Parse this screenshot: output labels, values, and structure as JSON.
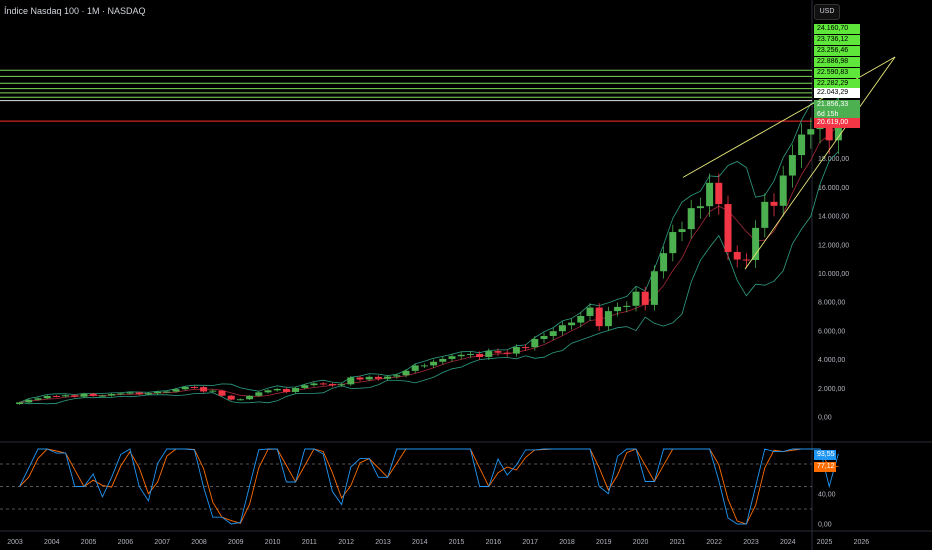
{
  "header": {
    "title": "Índice Nasdaq 100 · 1M · NASDAQ",
    "currency": "USD"
  },
  "colors": {
    "up": "#4caf50",
    "down": "#f23645",
    "band": "#2e9e85",
    "basis": "#a7283a",
    "trend": "#e8e87a",
    "level": "#7ed957",
    "red_level": "#ff2b2b",
    "k": "#2196f3",
    "d": "#ff6d00"
  },
  "price_tags": [
    {
      "label": "24.160,70",
      "value": 24160.7,
      "style": "green"
    },
    {
      "label": "23.736,12",
      "value": 23736.12,
      "style": "green"
    },
    {
      "label": "23.256,46",
      "value": 23256.46,
      "style": "green"
    },
    {
      "label": "22.886,98",
      "value": 22886.98,
      "style": "green"
    },
    {
      "label": "22.590,83",
      "value": 22590.83,
      "style": "green"
    },
    {
      "label": "22.282,29",
      "value": 22282.29,
      "style": "green"
    },
    {
      "label": "22.043,29",
      "value": 22043.29,
      "style": "white"
    },
    {
      "label": "21.856,33",
      "value": 21856.33,
      "style": "last"
    },
    {
      "label": "6d 15h",
      "value": null,
      "style": "countdown"
    },
    {
      "label": "20.619,00",
      "value": 20619.0,
      "style": "red"
    }
  ],
  "stoch_tags": [
    {
      "label": "93,55",
      "style": "k"
    },
    {
      "label": "77,12",
      "style": "d"
    }
  ],
  "chart_data": {
    "type": "candlestick",
    "title": "Índice Nasdaq 100 · 1M · NASDAQ",
    "period": "quarterly approximation",
    "start": "2003-Q1",
    "closes": [
      1018,
      1201,
      1303,
      1467,
      1438,
      1516,
      1412,
      1621,
      1482,
      1493,
      1601,
      1645,
      1703,
      1575,
      1654,
      1756,
      1772,
      1934,
      2091,
      2084,
      1781,
      1837,
      1483,
      1212,
      1237,
      1477,
      1718,
      1860,
      1953,
      1746,
      2023,
      2218,
      2339,
      2297,
      2212,
      2278,
      2755,
      2616,
      2799,
      2661,
      2818,
      2910,
      3218,
      3592,
      3596,
      3849,
      4049,
      4236,
      4334,
      4396,
      4182,
      4593,
      4483,
      4418,
      4875,
      4864,
      5436,
      5647,
      5979,
      6396,
      6581,
      7040,
      7627,
      6330,
      7378,
      7671,
      7749,
      8733,
      7813,
      10157,
      11418,
      12888,
      13091,
      14554,
      14690,
      16320,
      14838,
      11503,
      10971,
      10940,
      13181,
      14993,
      14716,
      16826,
      18254,
      19683,
      20061,
      21012,
      19279,
      21856
    ],
    "first_open": 900,
    "y_ticks": [
      "0,00",
      "2.000,00",
      "4.000,00",
      "6.000,00",
      "8.000,00",
      "10.000,00",
      "12.000,00",
      "14.000,00",
      "16.000,00",
      "18.000,00"
    ],
    "y_tick_values": [
      0,
      2000,
      4000,
      6000,
      8000,
      10000,
      12000,
      14000,
      16000,
      18000
    ],
    "x_ticks": [
      "2003",
      "2004",
      "2005",
      "2006",
      "2007",
      "2008",
      "2009",
      "2010",
      "2011",
      "2012",
      "2013",
      "2014",
      "2015",
      "2016",
      "2017",
      "2018",
      "2019",
      "2020",
      "2021",
      "2022",
      "2023",
      "2024",
      "2025",
      "2026"
    ],
    "ylim": [
      0,
      26000
    ],
    "stoch_ticks": [
      "40,00",
      "0,00"
    ],
    "stoch_levels": [
      80,
      50,
      20
    ],
    "stoch_last": {
      "k": 93.55,
      "d": 77.12
    }
  }
}
